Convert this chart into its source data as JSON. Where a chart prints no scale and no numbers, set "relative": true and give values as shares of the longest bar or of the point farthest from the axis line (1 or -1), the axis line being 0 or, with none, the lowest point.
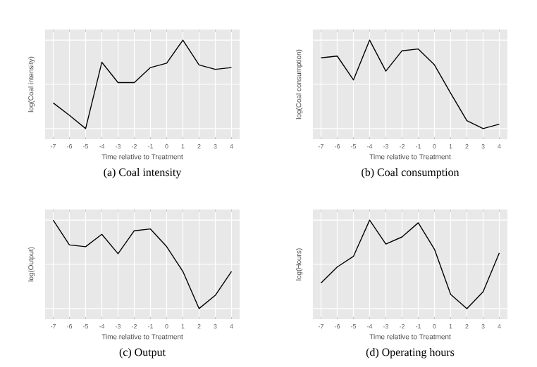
{
  "chart_data": [
    {
      "type": "line",
      "title": "(a) Coal intensity",
      "xlabel": "Time relative to Treatment",
      "ylabel": "log(Coal intensity)",
      "categories": [
        "-7",
        "-6",
        "-5",
        "-4",
        "-3",
        "-2",
        "-1",
        "0",
        "1",
        "2",
        "3",
        "4"
      ],
      "relative": true,
      "tick_labels": "x",
      "grid": true,
      "series": [
        {
          "color": "#000000",
          "values": [
            0.29,
            0.15,
            0,
            0.75,
            0.52,
            0.52,
            0.69,
            0.74,
            1,
            0.72,
            0.67,
            0.69
          ]
        }
      ]
    },
    {
      "type": "line",
      "title": "(b) Coal consumption",
      "xlabel": "Time relative to Treatment",
      "ylabel": "log(Coal consumption)",
      "categories": [
        "-7",
        "-6",
        "-5",
        "-4",
        "-3",
        "-2",
        "-1",
        "0",
        "1",
        "2",
        "3",
        "4"
      ],
      "relative": true,
      "tick_labels": "x",
      "grid": true,
      "series": [
        {
          "color": "#000000",
          "values": [
            0.8,
            0.82,
            0.55,
            1,
            0.65,
            0.88,
            0.9,
            0.72,
            0.4,
            0.09,
            0,
            0.05
          ]
        }
      ]
    },
    {
      "type": "line",
      "title": "(c) Output",
      "xlabel": "Time relative to Treatment",
      "ylabel": "log(Output)",
      "categories": [
        "-7",
        "-6",
        "-5",
        "-4",
        "-3",
        "-2",
        "-1",
        "0",
        "1",
        "2",
        "3",
        "4"
      ],
      "relative": true,
      "tick_labels": "x",
      "grid": true,
      "series": [
        {
          "color": "#000000",
          "values": [
            1,
            0.72,
            0.7,
            0.84,
            0.62,
            0.88,
            0.9,
            0.7,
            0.42,
            0,
            0.15,
            0.42
          ]
        }
      ]
    },
    {
      "type": "line",
      "title": "(d) Operating hours",
      "xlabel": "Time relative to Treatment",
      "ylabel": "log(Hours)",
      "categories": [
        "-7",
        "-6",
        "-5",
        "-4",
        "-3",
        "-2",
        "-1",
        "0",
        "1",
        "2",
        "3",
        "4"
      ],
      "relative": true,
      "tick_labels": "x",
      "grid": true,
      "series": [
        {
          "color": "#000000",
          "values": [
            0.29,
            0.47,
            0.59,
            1,
            0.73,
            0.81,
            0.97,
            0.67,
            0.16,
            0,
            0.19,
            0.63
          ]
        }
      ]
    }
  ]
}
